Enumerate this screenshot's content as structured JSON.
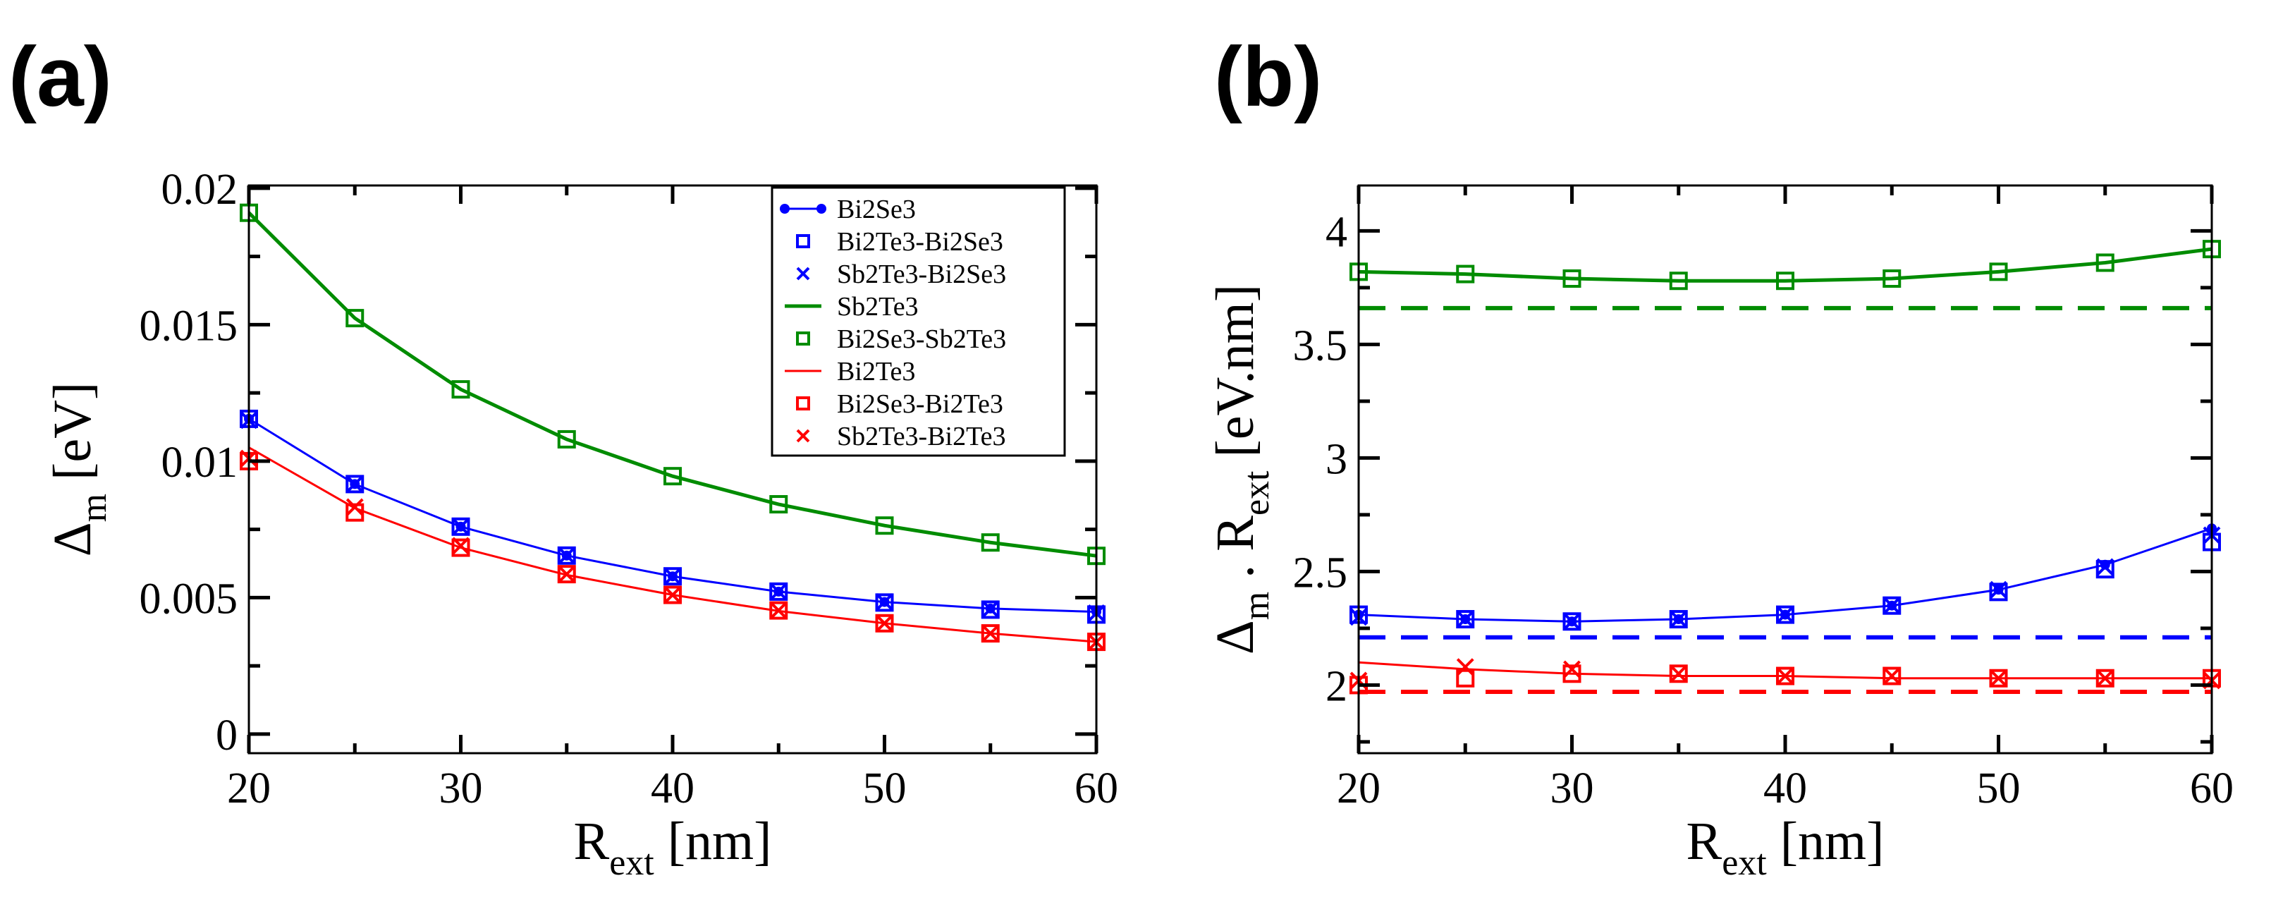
{
  "chart_data": [
    {
      "type": "line",
      "panel_label": "(a)",
      "xlabel": {
        "segments": [
          {
            "t": "R",
            "sub": false
          },
          {
            "t": "ext",
            "sub": true
          },
          {
            "t": " [nm]",
            "sub": false
          }
        ]
      },
      "ylabel": {
        "segments": [
          {
            "t": "Δ",
            "sub": false
          },
          {
            "t": "m",
            "sub": true
          },
          {
            "t": " [eV]",
            "sub": false
          }
        ]
      },
      "xlim": [
        20,
        60
      ],
      "ylim": [
        -0.0007,
        0.0201
      ],
      "xticks": [
        20,
        30,
        40,
        50,
        60
      ],
      "xtick_labels": [
        "20",
        "30",
        "40",
        "50",
        "60"
      ],
      "yticks": [
        0,
        0.005,
        0.01,
        0.015,
        0.02
      ],
      "ytick_labels": [
        "0",
        "0.005",
        "0.01",
        "0.015",
        "0.02"
      ],
      "x_minor_step": 5,
      "y_minor_step": 0.0025,
      "legend": "top-right",
      "grid": false,
      "x": [
        20,
        25,
        30,
        35,
        40,
        45,
        50,
        55,
        60
      ],
      "series": [
        {
          "name": "Bi2Se3",
          "color": "#0000ff",
          "style": "line-dot",
          "values": [
            0.01155,
            0.00916,
            0.0076,
            0.00654,
            0.00578,
            0.00522,
            0.00484,
            0.0046,
            0.00448
          ]
        },
        {
          "name": "Bi2Te3-Bi2Se3",
          "color": "#0000ff",
          "style": "square",
          "values": [
            0.01155,
            0.00916,
            0.0076,
            0.00654,
            0.00578,
            0.00522,
            0.00482,
            0.00456,
            0.00438
          ]
        },
        {
          "name": "Sb2Te3-Bi2Se3",
          "color": "#0000ff",
          "style": "cross",
          "values": [
            0.0115,
            0.00916,
            0.0076,
            0.00654,
            0.00578,
            0.00522,
            0.00484,
            0.00458,
            0.00443
          ]
        },
        {
          "name": "Sb2Te3",
          "color": "#008c00",
          "style": "line-thick",
          "values": [
            0.0191,
            0.01524,
            0.01263,
            0.0108,
            0.00945,
            0.00842,
            0.00764,
            0.00702,
            0.00653
          ]
        },
        {
          "name": "Bi2Se3-Sb2Te3",
          "color": "#008c00",
          "style": "square",
          "values": [
            0.0191,
            0.01524,
            0.01263,
            0.0108,
            0.00945,
            0.00842,
            0.00764,
            0.00702,
            0.00653
          ]
        },
        {
          "name": "Bi2Te3",
          "color": "#ff0000",
          "style": "line",
          "values": [
            0.0105,
            0.00828,
            0.00683,
            0.00583,
            0.0051,
            0.00451,
            0.00406,
            0.00369,
            0.00338
          ]
        },
        {
          "name": "Bi2Se3-Bi2Te3",
          "color": "#ff0000",
          "style": "square",
          "values": [
            0.01,
            0.00812,
            0.00683,
            0.00586,
            0.0051,
            0.00453,
            0.00406,
            0.00369,
            0.00338
          ]
        },
        {
          "name": "Sb2Te3-Bi2Te3",
          "color": "#ff0000",
          "style": "cross",
          "values": [
            0.0101,
            0.00832,
            0.0069,
            0.00586,
            0.0051,
            0.00453,
            0.00406,
            0.00369,
            0.00337
          ]
        }
      ]
    },
    {
      "type": "line",
      "panel_label": "(b)",
      "xlabel": {
        "segments": [
          {
            "t": "R",
            "sub": false
          },
          {
            "t": "ext",
            "sub": true
          },
          {
            "t": " [nm]",
            "sub": false
          }
        ]
      },
      "ylabel": {
        "segments": [
          {
            "t": "Δ",
            "sub": false
          },
          {
            "t": "m",
            "sub": true
          },
          {
            "t": " . R",
            "sub": false
          },
          {
            "t": "ext",
            "sub": true
          },
          {
            "t": " [eV.nm]",
            "sub": false
          }
        ]
      },
      "xlim": [
        20,
        60
      ],
      "ylim": [
        1.7,
        4.2
      ],
      "xticks": [
        20,
        30,
        40,
        50,
        60
      ],
      "xtick_labels": [
        "20",
        "30",
        "40",
        "50",
        "60"
      ],
      "yticks": [
        2,
        2.5,
        3,
        3.5,
        4
      ],
      "ytick_labels": [
        "2",
        "2.5",
        "3",
        "3.5",
        "4"
      ],
      "x_minor_step": 5,
      "y_minor_step": 0.25,
      "grid": false,
      "x": [
        20,
        25,
        30,
        35,
        40,
        45,
        50,
        55,
        60
      ],
      "series": [
        {
          "name": "Bi2Se3",
          "color": "#0000ff",
          "style": "line-dot",
          "values": [
            2.31,
            2.29,
            2.28,
            2.29,
            2.31,
            2.35,
            2.42,
            2.53,
            2.69
          ]
        },
        {
          "name": "Bi2Te3-Bi2Se3",
          "color": "#0000ff",
          "style": "square",
          "values": [
            2.31,
            2.29,
            2.28,
            2.29,
            2.31,
            2.35,
            2.41,
            2.51,
            2.63
          ]
        },
        {
          "name": "Sb2Te3-Bi2Se3",
          "color": "#0000ff",
          "style": "cross",
          "values": [
            2.3,
            2.29,
            2.28,
            2.29,
            2.31,
            2.35,
            2.42,
            2.52,
            2.66
          ]
        },
        {
          "name": "Sb2Te3",
          "color": "#008c00",
          "style": "line-thick",
          "values": [
            3.82,
            3.81,
            3.79,
            3.78,
            3.78,
            3.79,
            3.82,
            3.86,
            3.92
          ]
        },
        {
          "name": "Bi2Se3-Sb2Te3",
          "color": "#008c00",
          "style": "square",
          "values": [
            3.82,
            3.81,
            3.79,
            3.78,
            3.78,
            3.79,
            3.82,
            3.86,
            3.92
          ]
        },
        {
          "name": "Bi2Te3",
          "color": "#ff0000",
          "style": "line",
          "values": [
            2.1,
            2.07,
            2.05,
            2.04,
            2.04,
            2.03,
            2.03,
            2.03,
            2.03
          ]
        },
        {
          "name": "Bi2Se3-Bi2Te3",
          "color": "#ff0000",
          "style": "square",
          "values": [
            2.0,
            2.03,
            2.05,
            2.05,
            2.04,
            2.04,
            2.03,
            2.03,
            2.03
          ]
        },
        {
          "name": "Sb2Te3-Bi2Te3",
          "color": "#ff0000",
          "style": "cross",
          "values": [
            2.02,
            2.08,
            2.07,
            2.05,
            2.04,
            2.04,
            2.03,
            2.03,
            2.02
          ]
        }
      ],
      "reference_lines": [
        {
          "color": "#008c00",
          "style": "dashed",
          "y": 3.66
        },
        {
          "color": "#0000ff",
          "style": "dashed",
          "y": 2.21
        },
        {
          "color": "#ff0000",
          "style": "dashed",
          "y": 1.97
        }
      ]
    }
  ]
}
